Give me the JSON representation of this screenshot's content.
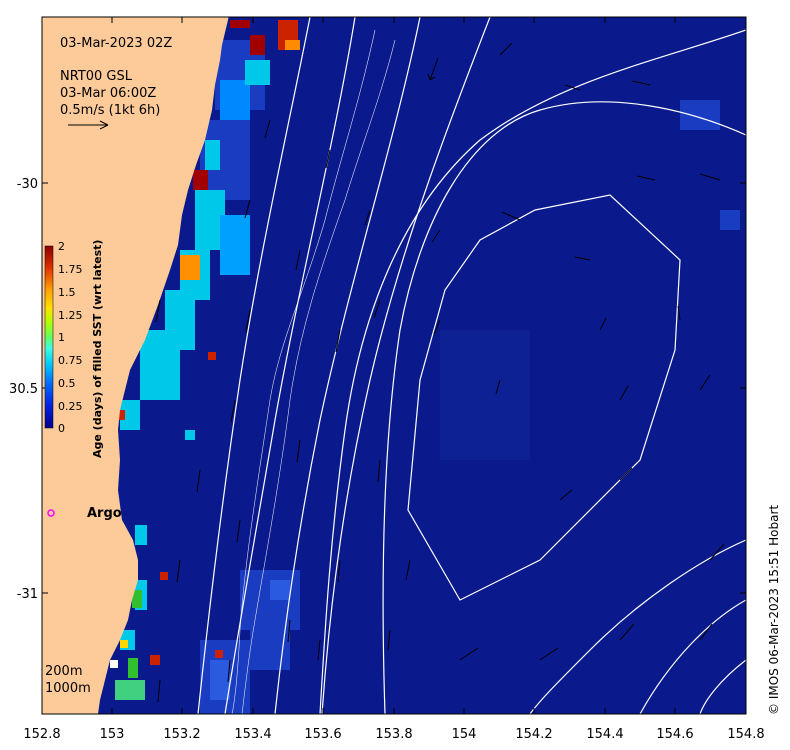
{
  "title": {
    "date_label": "03-Mar-2023 02Z",
    "product_label": "NRT00 GSL",
    "current_time_label": "03-Mar 06:00Z",
    "vector_scale_label": "0.5m/s (1kt 6h)"
  },
  "axes": {
    "x_ticks": [
      "152.8",
      "153",
      "153.2",
      "153.4",
      "153.6",
      "153.8",
      "154",
      "154.2",
      "154.4",
      "154.6",
      "154.8"
    ],
    "y_ticks": [
      "-30",
      "30.5",
      "-31"
    ],
    "x_range": [
      152.8,
      154.8
    ],
    "y_range": [
      -29.6,
      -31.3
    ]
  },
  "colorbar": {
    "title": "Age (days) of filled SST (wrt latest)",
    "ticks": [
      "2",
      "1.75",
      "1.5",
      "1.25",
      "1",
      "0.75",
      "0.5",
      "0.25",
      "0"
    ],
    "colors": [
      "#00008b",
      "#0000cd",
      "#0050ff",
      "#00a0ff",
      "#00e5ee",
      "#40ff90",
      "#30c030",
      "#c0ff00",
      "#ffd700",
      "#ffa500",
      "#ff6000",
      "#c00000",
      "#8b0000"
    ]
  },
  "annotations": {
    "argo_label": "Argo",
    "isobath_200": "200m",
    "isobath_1000": "1000m",
    "credit": "© IMOS 06-Mar-2023 15:51 Hobart"
  },
  "colors": {
    "ocean": "#0a1a8c",
    "land": "#fdcb9a",
    "contour": "#ffffff",
    "argo_marker": "#ff00ff"
  }
}
